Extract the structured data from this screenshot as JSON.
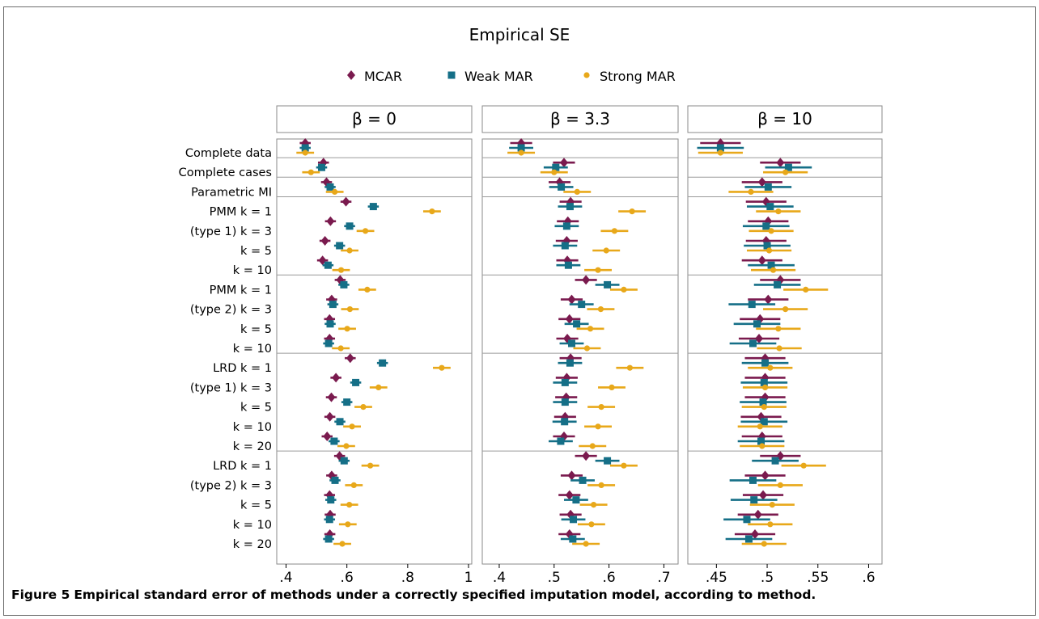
{
  "caption": {
    "label": "Figure 5",
    "text": "Empirical standard error of methods under a correctly specified imputation model, according to method."
  },
  "chart_data": {
    "type": "scatter",
    "title": "Empirical SE",
    "legend_position": "top-center",
    "series": [
      {
        "name": "MCAR",
        "color": "#7a1a4e",
        "marker": "diamond"
      },
      {
        "name": "Weak MAR",
        "color": "#156f87",
        "marker": "square"
      },
      {
        "name": "Strong MAR",
        "color": "#e8a81a",
        "marker": "circle"
      }
    ],
    "row_labels": [
      "Complete data",
      "Complete cases",
      "Parametric MI",
      "PMM   k = 1",
      "(type 1) k = 3",
      "k = 5",
      "k = 10",
      "PMM   k = 1",
      "(type 2) k = 3",
      "k = 5",
      "k = 10",
      "LRD   k = 1",
      "(type 1) k = 3",
      "k = 5",
      "k = 10",
      "k = 20",
      "LRD   k = 1",
      "(type 2) k = 3",
      "k = 5",
      "k = 10",
      "k = 20"
    ],
    "group_separators_after_row": [
      0,
      1,
      2,
      6,
      10,
      15
    ],
    "panels": [
      {
        "title": "β = 0",
        "xlim": [
          0.38,
          1.0
        ],
        "ticks": [
          0.4,
          0.6,
          0.8,
          1.0
        ],
        "tick_labels": [
          ".4",
          ".6",
          ".8",
          "1"
        ],
        "points": {
          "MCAR": [
            0.463,
            0.523,
            0.533,
            0.597,
            0.546,
            0.528,
            0.52,
            0.578,
            0.55,
            0.543,
            0.543,
            0.611,
            0.564,
            0.549,
            0.544,
            0.535,
            0.576,
            0.55,
            0.543,
            0.545,
            0.544
          ],
          "Weak MAR": [
            0.463,
            0.517,
            0.545,
            0.687,
            0.609,
            0.576,
            0.538,
            0.59,
            0.554,
            0.545,
            0.54,
            0.717,
            0.629,
            0.6,
            0.577,
            0.558,
            0.591,
            0.561,
            0.547,
            0.543,
            0.54
          ],
          "Strong MAR": [
            0.463,
            0.482,
            0.56,
            0.88,
            0.661,
            0.609,
            0.581,
            0.667,
            0.61,
            0.601,
            0.58,
            0.912,
            0.704,
            0.654,
            0.617,
            0.598,
            0.677,
            0.623,
            0.608,
            0.603,
            0.585
          ]
        },
        "ci_halfwidth": {
          "MCAR": 0.018,
          "Weak MAR": 0.018,
          "Strong MAR": 0.029
        }
      },
      {
        "title": "β = 3.3",
        "xlim": [
          0.375,
          0.72
        ],
        "ticks": [
          0.4,
          0.5,
          0.6,
          0.7
        ],
        "tick_labels": [
          ".4",
          ".5",
          ".6",
          ".7"
        ],
        "points": {
          "MCAR": [
            0.44,
            0.518,
            0.51,
            0.53,
            0.525,
            0.523,
            0.524,
            0.558,
            0.532,
            0.528,
            0.524,
            0.53,
            0.523,
            0.522,
            0.52,
            0.518,
            0.558,
            0.532,
            0.528,
            0.53,
            0.528
          ],
          "Weak MAR": [
            0.44,
            0.503,
            0.513,
            0.529,
            0.523,
            0.52,
            0.526,
            0.597,
            0.55,
            0.541,
            0.532,
            0.529,
            0.52,
            0.52,
            0.519,
            0.512,
            0.597,
            0.552,
            0.54,
            0.535,
            0.534
          ],
          "Strong MAR": [
            0.44,
            0.5,
            0.542,
            0.642,
            0.61,
            0.595,
            0.58,
            0.627,
            0.585,
            0.566,
            0.56,
            0.638,
            0.605,
            0.586,
            0.58,
            0.57,
            0.627,
            0.586,
            0.572,
            0.568,
            0.558
          ]
        },
        "ci_halfwidth": {
          "MCAR": 0.02,
          "Weak MAR": 0.022,
          "Strong MAR": 0.025
        }
      },
      {
        "title": "β = 10",
        "xlim": [
          0.425,
          0.61
        ],
        "ticks": [
          0.45,
          0.5,
          0.55,
          0.6
        ],
        "tick_labels": [
          ".45",
          ".5",
          ".55",
          ".6"
        ],
        "points": {
          "MCAR": [
            0.454,
            0.513,
            0.495,
            0.499,
            0.501,
            0.499,
            0.495,
            0.513,
            0.501,
            0.493,
            0.492,
            0.498,
            0.498,
            0.498,
            0.494,
            0.495,
            0.513,
            0.498,
            0.496,
            0.491,
            0.488
          ],
          "Weak MAR": [
            0.454,
            0.521,
            0.501,
            0.503,
            0.499,
            0.5,
            0.504,
            0.51,
            0.485,
            0.49,
            0.486,
            0.498,
            0.497,
            0.496,
            0.497,
            0.494,
            0.508,
            0.486,
            0.487,
            0.48,
            0.482
          ],
          "Strong MAR": [
            0.454,
            0.518,
            0.484,
            0.511,
            0.504,
            0.502,
            0.506,
            0.538,
            0.518,
            0.511,
            0.512,
            0.503,
            0.498,
            0.497,
            0.493,
            0.495,
            0.536,
            0.513,
            0.505,
            0.503,
            0.497
          ]
        },
        "ci_halfwidth": {
          "MCAR": 0.02,
          "Weak MAR": 0.023,
          "Strong MAR": 0.022
        }
      }
    ]
  }
}
